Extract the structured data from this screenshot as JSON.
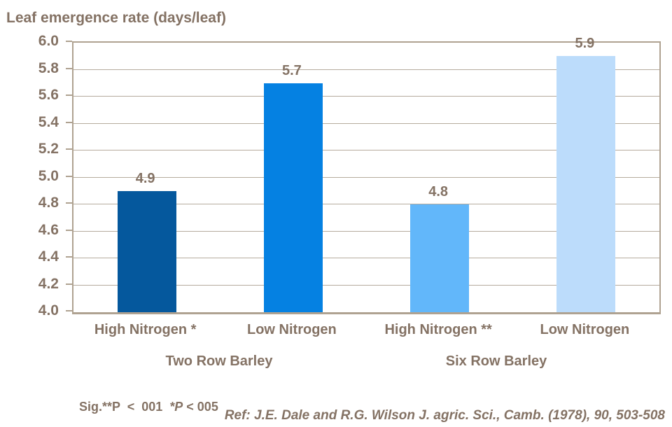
{
  "title": "Leaf emergence rate (days/leaf)",
  "footnote": {
    "prefix": "Sig.**P  <  001  ",
    "italic_part": "*P",
    "suffix": " < 005"
  },
  "reference": "Ref: J.E. Dale and R.G. Wilson J. agric. Sci., Camb. (1978), 90, 503-508",
  "colors": {
    "text": "#847264",
    "grid": "#b6ab9d",
    "axis": "#afa291",
    "bar_dark_blue": "#05589d",
    "bar_blue": "#0581e2",
    "bar_light_blue": "#62b7fa",
    "bar_pale_blue": "#bcdcfb"
  },
  "chart_data": {
    "type": "bar",
    "title": "Leaf emergence rate (days/leaf)",
    "categories": [
      "High Nitrogen *",
      "Low Nitrogen",
      "High Nitrogen **",
      "Low Nitrogen"
    ],
    "values": [
      4.9,
      5.7,
      4.8,
      5.9
    ],
    "data_labels": [
      "4.9",
      "5.7",
      "4.8",
      "5.9"
    ],
    "bar_colors": [
      "#05589d",
      "#0581e2",
      "#62b7fa",
      "#bcdcfb"
    ],
    "group_labels": [
      "Two Row Barley",
      "Six Row Barley"
    ],
    "xlabel": "",
    "ylabel": "Leaf emergence rate (days/leaf)",
    "ylim": [
      4.0,
      6.0
    ],
    "ytick_step": 0.2,
    "yticks": [
      "6.0",
      "5.8",
      "5.6",
      "5.4",
      "5.2",
      "5.0",
      "4.8",
      "4.6",
      "4.4",
      "4.2",
      "4.0"
    ],
    "grid": true,
    "legend": "none",
    "footnote": "Sig.**P < 001 *P < 005",
    "reference": "Ref: J.E. Dale and R.G. Wilson J. agric. Sci., Camb. (1978), 90, 503-508"
  }
}
